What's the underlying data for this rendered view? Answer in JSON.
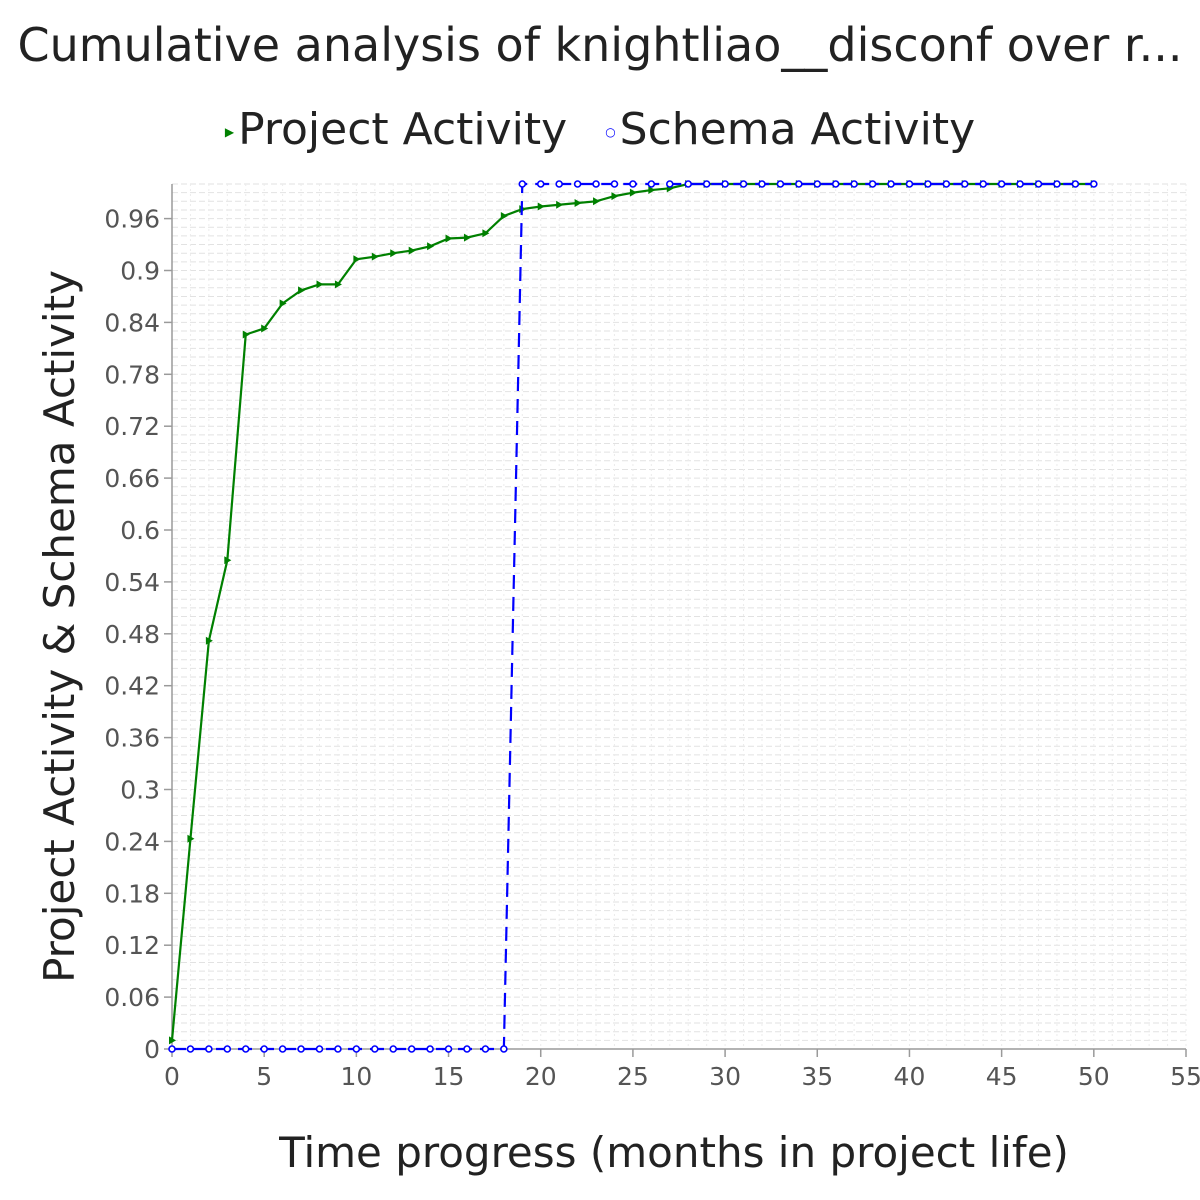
{
  "chart_data": {
    "type": "line",
    "title": "Cumulative analysis of knightliao__disconf over r...",
    "xlabel": "Time progress (months in project life)",
    "ylabel": "Project Activity & Schema Activity",
    "xlim": [
      0,
      55
    ],
    "ylim": [
      0,
      1.0
    ],
    "x_ticks": [
      "0",
      "5",
      "10",
      "15",
      "20",
      "25",
      "30",
      "35",
      "40",
      "45",
      "50",
      "55"
    ],
    "y_ticks": [
      "0",
      "0.06",
      "0.12",
      "0.18",
      "0.24",
      "0.3",
      "0.36",
      "0.42",
      "0.48",
      "0.54",
      "0.6",
      "0.66",
      "0.72",
      "0.78",
      "0.84",
      "0.9",
      "0.96"
    ],
    "grid": true,
    "legend_position": "top",
    "series": [
      {
        "name": "Project Activity",
        "color": "#008000",
        "marker": "triangle-right",
        "line_style": "solid",
        "points": [
          [
            0,
            0.01
          ],
          [
            1,
            0.243
          ],
          [
            2,
            0.472
          ],
          [
            3,
            0.565
          ],
          [
            4,
            0.826
          ],
          [
            5,
            0.833
          ],
          [
            6,
            0.862
          ],
          [
            7,
            0.877
          ],
          [
            8,
            0.884
          ],
          [
            9,
            0.884
          ],
          [
            10,
            0.913
          ],
          [
            11,
            0.916
          ],
          [
            12,
            0.92
          ],
          [
            13,
            0.923
          ],
          [
            14,
            0.928
          ],
          [
            15,
            0.937
          ],
          [
            16,
            0.938
          ],
          [
            17,
            0.943
          ],
          [
            18,
            0.963
          ],
          [
            19,
            0.971
          ],
          [
            20,
            0.974
          ],
          [
            21,
            0.976
          ],
          [
            22,
            0.978
          ],
          [
            23,
            0.98
          ],
          [
            24,
            0.986
          ],
          [
            25,
            0.99
          ],
          [
            26,
            0.993
          ],
          [
            27,
            0.995
          ],
          [
            28,
            1.0
          ],
          [
            29,
            1.0
          ],
          [
            30,
            1.0
          ],
          [
            31,
            1.0
          ],
          [
            32,
            1.0
          ],
          [
            33,
            1.0
          ],
          [
            34,
            1.0
          ],
          [
            35,
            1.0
          ],
          [
            36,
            1.0
          ],
          [
            37,
            1.0
          ],
          [
            38,
            1.0
          ],
          [
            39,
            1.0
          ],
          [
            40,
            1.0
          ],
          [
            41,
            1.0
          ],
          [
            42,
            1.0
          ],
          [
            43,
            1.0
          ],
          [
            44,
            1.0
          ],
          [
            45,
            1.0
          ],
          [
            46,
            1.0
          ],
          [
            47,
            1.0
          ],
          [
            48,
            1.0
          ],
          [
            49,
            1.0
          ],
          [
            50,
            1.0
          ]
        ]
      },
      {
        "name": "Schema Activity",
        "color": "#0000ff",
        "marker": "circle",
        "line_style": "dashed",
        "points": [
          [
            0,
            0
          ],
          [
            1,
            0
          ],
          [
            2,
            0
          ],
          [
            3,
            0
          ],
          [
            4,
            0
          ],
          [
            5,
            0
          ],
          [
            6,
            0
          ],
          [
            7,
            0
          ],
          [
            8,
            0
          ],
          [
            9,
            0
          ],
          [
            10,
            0
          ],
          [
            11,
            0
          ],
          [
            12,
            0
          ],
          [
            13,
            0
          ],
          [
            14,
            0
          ],
          [
            15,
            0
          ],
          [
            16,
            0
          ],
          [
            17,
            0
          ],
          [
            18,
            0
          ],
          [
            19,
            1.0
          ],
          [
            20,
            1.0
          ],
          [
            21,
            1.0
          ],
          [
            22,
            1.0
          ],
          [
            23,
            1.0
          ],
          [
            24,
            1.0
          ],
          [
            25,
            1.0
          ],
          [
            26,
            1.0
          ],
          [
            27,
            1.0
          ],
          [
            28,
            1.0
          ],
          [
            29,
            1.0
          ],
          [
            30,
            1.0
          ],
          [
            31,
            1.0
          ],
          [
            32,
            1.0
          ],
          [
            33,
            1.0
          ],
          [
            34,
            1.0
          ],
          [
            35,
            1.0
          ],
          [
            36,
            1.0
          ],
          [
            37,
            1.0
          ],
          [
            38,
            1.0
          ],
          [
            39,
            1.0
          ],
          [
            40,
            1.0
          ],
          [
            41,
            1.0
          ],
          [
            42,
            1.0
          ],
          [
            43,
            1.0
          ],
          [
            44,
            1.0
          ],
          [
            45,
            1.0
          ],
          [
            46,
            1.0
          ],
          [
            47,
            1.0
          ],
          [
            48,
            1.0
          ],
          [
            49,
            1.0
          ],
          [
            50,
            1.0
          ]
        ]
      }
    ]
  }
}
